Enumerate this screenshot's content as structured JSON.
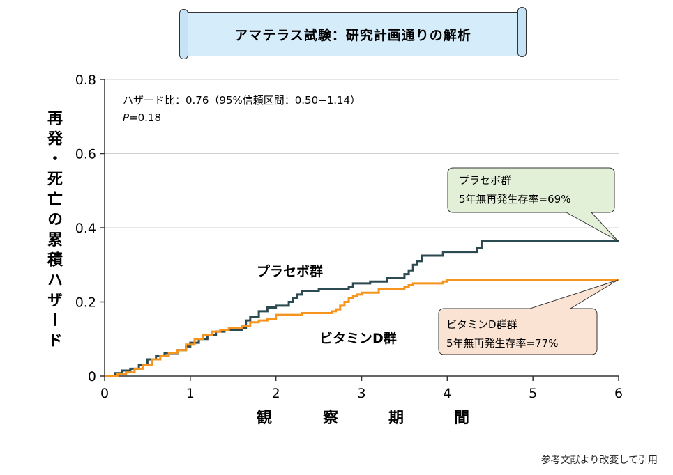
{
  "title": "アマテラス試験：研究計画通りの解析",
  "y_axis_label": "再発・死亡の累積ハザード",
  "x_axis_label_chars": [
    "観",
    "察",
    "期",
    "間"
  ],
  "stats": {
    "hazard_ratio": "ハザード比：0.76（95%信頼区間：0.50−1.14）",
    "p_italic": "P",
    "p_value": "=0.18"
  },
  "series_labels": {
    "placebo": "プラセボ群",
    "vitamin_d": "ビタミンD群"
  },
  "callouts": {
    "placebo": {
      "line1": "プラセボ群",
      "line2": "5年無再発生存率=69%"
    },
    "vitamin_d": {
      "line1": "ビタミンD群群",
      "line2": "5年無再発生存率=77%"
    }
  },
  "credit": "参考文献より改変して引用",
  "colors": {
    "placebo": "#2c4a52",
    "vitamin_d": "#f5951d",
    "callout_placebo_bg": "#e3f0d8",
    "callout_vitamin_bg": "#fbe3d4",
    "title_bg": "#d5ecfb"
  },
  "chart_data": {
    "type": "line",
    "xlim": [
      0,
      6
    ],
    "ylim": [
      0,
      0.8
    ],
    "x_ticks": [
      "0",
      "1",
      "2",
      "3",
      "4",
      "5",
      "6"
    ],
    "y_ticks": [
      "0",
      "0.2",
      "0.4",
      "0.6",
      "0.8"
    ],
    "grid": true,
    "series": [
      {
        "name": "プラセボ群",
        "step": true,
        "points": [
          [
            0,
            0
          ],
          [
            0.05,
            0
          ],
          [
            0.12,
            0.008
          ],
          [
            0.2,
            0.015
          ],
          [
            0.3,
            0.02
          ],
          [
            0.4,
            0.03
          ],
          [
            0.5,
            0.045
          ],
          [
            0.6,
            0.055
          ],
          [
            0.7,
            0.062
          ],
          [
            0.85,
            0.07
          ],
          [
            0.95,
            0.08
          ],
          [
            1.0,
            0.09
          ],
          [
            1.1,
            0.1
          ],
          [
            1.2,
            0.11
          ],
          [
            1.3,
            0.12
          ],
          [
            1.4,
            0.125
          ],
          [
            1.6,
            0.13
          ],
          [
            1.65,
            0.15
          ],
          [
            1.7,
            0.16
          ],
          [
            1.8,
            0.175
          ],
          [
            1.9,
            0.185
          ],
          [
            2.0,
            0.19
          ],
          [
            2.15,
            0.2
          ],
          [
            2.2,
            0.21
          ],
          [
            2.25,
            0.22
          ],
          [
            2.3,
            0.23
          ],
          [
            2.5,
            0.235
          ],
          [
            2.85,
            0.24
          ],
          [
            2.9,
            0.25
          ],
          [
            3.1,
            0.255
          ],
          [
            3.3,
            0.265
          ],
          [
            3.5,
            0.275
          ],
          [
            3.55,
            0.285
          ],
          [
            3.6,
            0.3
          ],
          [
            3.65,
            0.31
          ],
          [
            3.7,
            0.325
          ],
          [
            3.95,
            0.335
          ],
          [
            4.35,
            0.345
          ],
          [
            4.4,
            0.365
          ],
          [
            6.0,
            0.365
          ]
        ]
      },
      {
        "name": "ビタミンD群",
        "step": true,
        "points": [
          [
            0,
            0
          ],
          [
            0.1,
            0
          ],
          [
            0.15,
            0.005
          ],
          [
            0.25,
            0.01
          ],
          [
            0.35,
            0.02
          ],
          [
            0.45,
            0.03
          ],
          [
            0.55,
            0.045
          ],
          [
            0.65,
            0.055
          ],
          [
            0.75,
            0.063
          ],
          [
            0.85,
            0.07
          ],
          [
            0.95,
            0.085
          ],
          [
            1.05,
            0.1
          ],
          [
            1.15,
            0.11
          ],
          [
            1.25,
            0.12
          ],
          [
            1.35,
            0.125
          ],
          [
            1.45,
            0.13
          ],
          [
            1.6,
            0.135
          ],
          [
            1.7,
            0.145
          ],
          [
            1.8,
            0.15
          ],
          [
            1.9,
            0.155
          ],
          [
            2.0,
            0.165
          ],
          [
            2.3,
            0.17
          ],
          [
            2.65,
            0.175
          ],
          [
            2.7,
            0.18
          ],
          [
            2.75,
            0.19
          ],
          [
            2.8,
            0.2
          ],
          [
            2.85,
            0.21
          ],
          [
            2.9,
            0.215
          ],
          [
            2.95,
            0.22
          ],
          [
            3.0,
            0.225
          ],
          [
            3.2,
            0.235
          ],
          [
            3.5,
            0.24
          ],
          [
            3.55,
            0.245
          ],
          [
            3.6,
            0.25
          ],
          [
            3.95,
            0.255
          ],
          [
            4.0,
            0.26
          ],
          [
            6.0,
            0.26
          ]
        ]
      }
    ]
  }
}
